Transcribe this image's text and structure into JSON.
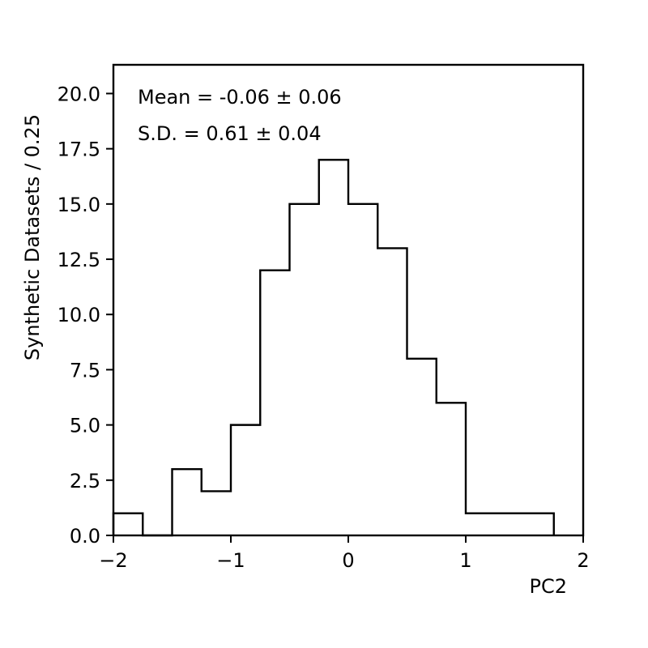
{
  "chart_data": {
    "type": "histogram",
    "title": "",
    "xlabel": "PC2",
    "ylabel": "Synthetic Datasets / 0.25",
    "xlim": [
      -2,
      2
    ],
    "ylim": [
      0,
      21.3
    ],
    "bin_width": 0.25,
    "bin_edges": [
      -2.0,
      -1.75,
      -1.5,
      -1.25,
      -1.0,
      -0.75,
      -0.5,
      -0.25,
      0.0,
      0.25,
      0.5,
      0.75,
      1.0,
      1.25,
      1.5,
      1.75
    ],
    "counts": [
      1,
      0,
      3,
      2,
      5,
      12,
      15,
      17,
      15,
      13,
      8,
      6,
      1,
      1,
      1
    ],
    "x_ticks": [
      -2,
      -1,
      0,
      1,
      2
    ],
    "x_tick_labels": [
      "−2",
      "−1",
      "0",
      "1",
      "2"
    ],
    "y_ticks": [
      0,
      2.5,
      5,
      7.5,
      10,
      12.5,
      15,
      17.5,
      20
    ],
    "y_tick_labels": [
      "0.0",
      "2.5",
      "5.0",
      "7.5",
      "10.0",
      "12.5",
      "15.0",
      "17.5",
      "20.0"
    ],
    "annotations": [
      "Mean = -0.06 ± 0.06",
      "S.D. = 0.61 ± 0.04"
    ],
    "grid": false,
    "line_color": "#000000"
  }
}
